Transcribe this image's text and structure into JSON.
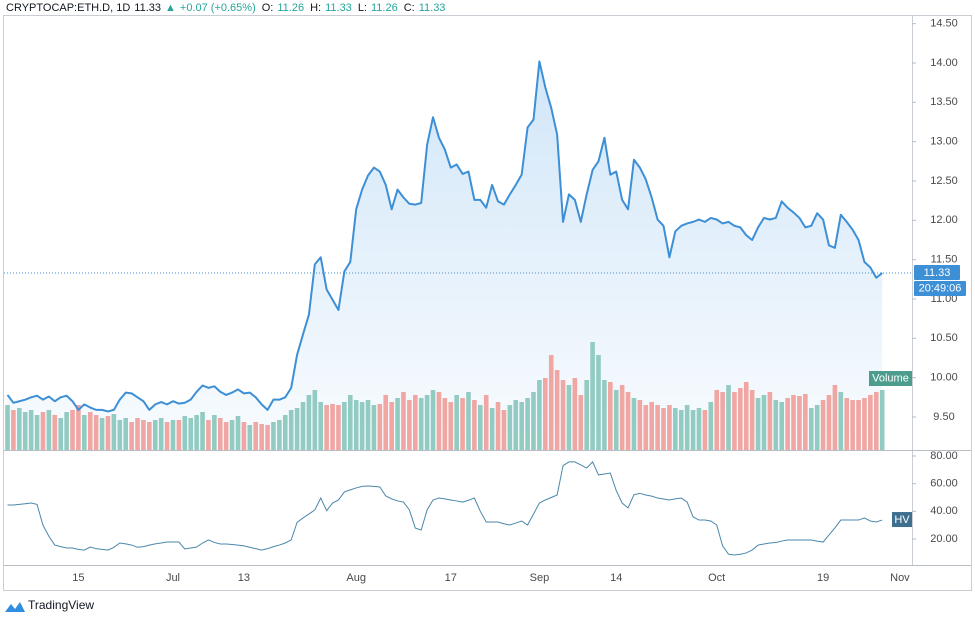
{
  "branding": "TradingView",
  "chart_data": [
    {
      "type": "area",
      "title": "CRYPTOCAP:ETH.D, 1D",
      "quote": {
        "last": 11.33,
        "change": "+0.07 (+0.65%)",
        "ohlc": [
          {
            "label": "O:",
            "value": 11.26
          },
          {
            "label": "H:",
            "value": 11.33
          },
          {
            "label": "L:",
            "value": 11.26
          },
          {
            "label": "C:",
            "value": 11.33
          }
        ]
      },
      "countdown": "20:49:06",
      "color": "#3d8fd6",
      "categories": [
        null,
        null,
        null,
        null,
        null,
        null,
        null,
        null,
        null,
        null,
        null,
        null,
        "15",
        null,
        null,
        null,
        null,
        null,
        null,
        null,
        null,
        null,
        null,
        null,
        null,
        null,
        null,
        null,
        "Jul",
        null,
        null,
        null,
        null,
        null,
        null,
        null,
        null,
        null,
        null,
        null,
        "13",
        null,
        null,
        null,
        null,
        null,
        null,
        null,
        null,
        null,
        null,
        null,
        null,
        null,
        null,
        null,
        null,
        null,
        null,
        "Aug",
        null,
        null,
        null,
        null,
        null,
        null,
        null,
        null,
        null,
        null,
        null,
        null,
        null,
        null,
        null,
        "17",
        null,
        null,
        null,
        null,
        null,
        null,
        null,
        null,
        null,
        null,
        null,
        null,
        null,
        null,
        "Sep",
        null,
        null,
        null,
        null,
        null,
        null,
        null,
        null,
        null,
        null,
        null,
        null,
        "14",
        null,
        null,
        null,
        null,
        null,
        null,
        null,
        null,
        null,
        null,
        null,
        null,
        null,
        null,
        null,
        null,
        "Oct",
        null,
        null,
        null,
        null,
        null,
        null,
        null,
        null,
        null,
        null,
        null,
        null,
        null,
        null,
        null,
        null,
        null,
        "19",
        null,
        null,
        null,
        null,
        null,
        null,
        null,
        null,
        null,
        null,
        null,
        null,
        "Nov"
      ],
      "values": [
        9.78,
        9.68,
        9.7,
        9.72,
        9.75,
        9.77,
        9.72,
        9.76,
        9.7,
        9.75,
        9.77,
        9.7,
        9.59,
        9.66,
        9.62,
        9.59,
        9.59,
        9.57,
        9.59,
        9.72,
        9.81,
        9.8,
        9.75,
        9.7,
        9.59,
        9.66,
        9.69,
        9.66,
        9.7,
        9.67,
        9.68,
        9.72,
        9.82,
        9.9,
        9.87,
        9.89,
        9.82,
        9.78,
        9.81,
        9.85,
        9.8,
        9.81,
        9.75,
        9.66,
        9.59,
        9.72,
        9.72,
        9.75,
        9.87,
        10.29,
        10.55,
        10.8,
        11.44,
        11.53,
        11.12,
        10.99,
        10.86,
        11.35,
        11.47,
        12.14,
        12.39,
        12.57,
        12.67,
        12.62,
        12.45,
        12.14,
        12.39,
        12.29,
        12.21,
        12.2,
        12.22,
        12.96,
        13.31,
        13.05,
        12.9,
        12.67,
        12.71,
        12.59,
        12.62,
        12.26,
        12.26,
        12.16,
        12.45,
        12.24,
        12.2,
        12.33,
        12.45,
        12.58,
        13.18,
        13.28,
        14.02,
        13.69,
        13.43,
        13.09,
        11.98,
        12.33,
        12.26,
        11.98,
        12.33,
        12.64,
        12.75,
        13.05,
        12.58,
        12.62,
        12.26,
        12.14,
        12.77,
        12.67,
        12.52,
        12.29,
        12.01,
        11.93,
        11.53,
        11.86,
        11.93,
        11.96,
        11.98,
        12.01,
        11.98,
        12.03,
        12.01,
        11.96,
        11.98,
        11.93,
        11.91,
        11.81,
        11.75,
        11.91,
        12.03,
        12.01,
        12.03,
        12.24,
        12.16,
        12.1,
        12.03,
        11.91,
        11.93,
        12.09,
        12.01,
        11.68,
        11.65,
        12.07,
        11.98,
        11.88,
        11.75,
        11.47,
        11.4,
        11.27,
        11.33,
        null,
        null,
        null
      ],
      "ylim": [
        9.08,
        14.61
      ],
      "yticks": [
        {
          "value": 9.5,
          "label": "9.50"
        },
        {
          "value": 10,
          "label": "10.00"
        },
        {
          "value": 10.5,
          "label": "10.50"
        },
        {
          "value": 11,
          "label": "11.00"
        },
        {
          "value": 11.5,
          "label": "11.50"
        },
        {
          "value": 12,
          "label": "12.00"
        },
        {
          "value": 12.5,
          "label": "12.50"
        },
        {
          "value": 13,
          "label": "13.00"
        },
        {
          "value": 13.5,
          "label": "13.50"
        },
        {
          "value": 14,
          "label": "14.00"
        },
        {
          "value": 14.5,
          "label": "14.50"
        }
      ],
      "grid": false
    },
    {
      "type": "bar",
      "name": "Volume",
      "up_color": "#92cbc1",
      "down_color": "#f0a6a2",
      "values": [
        45,
        40,
        42,
        38,
        40,
        35,
        38,
        40,
        35,
        32,
        38,
        40,
        45,
        35,
        38,
        35,
        32,
        34,
        36,
        30,
        32,
        28,
        32,
        30,
        28,
        30,
        32,
        28,
        30,
        30,
        34,
        32,
        35,
        38,
        30,
        35,
        32,
        28,
        30,
        34,
        28,
        25,
        28,
        26,
        25,
        28,
        30,
        35,
        40,
        42,
        48,
        55,
        60,
        48,
        45,
        46,
        45,
        48,
        55,
        50,
        48,
        50,
        45,
        46,
        55,
        48,
        52,
        58,
        50,
        55,
        52,
        55,
        60,
        58,
        52,
        48,
        55,
        52,
        58,
        50,
        45,
        55,
        42,
        48,
        40,
        45,
        50,
        48,
        52,
        58,
        70,
        72,
        95,
        80,
        70,
        65,
        72,
        55,
        70,
        108,
        95,
        70,
        68,
        60,
        65,
        58,
        52,
        50,
        45,
        48,
        45,
        42,
        45,
        42,
        40,
        45,
        40,
        42,
        40,
        48,
        60,
        58,
        65,
        58,
        62,
        68,
        60,
        52,
        55,
        58,
        50,
        48,
        52,
        55,
        54,
        56,
        42,
        45,
        50,
        55,
        65,
        58,
        52,
        50,
        50,
        52,
        55,
        58,
        60,
        null,
        null,
        null
      ],
      "ylim": [
        0,
        435
      ]
    },
    {
      "type": "line",
      "name": "HV",
      "color": "#4b87ab",
      "values": [
        44.6,
        44.6,
        45.0,
        45.5,
        46.0,
        45.0,
        30.0,
        22.0,
        15.6,
        14.5,
        13.5,
        13.5,
        12.5,
        12.0,
        14.2,
        13.0,
        12.5,
        12.0,
        14.0,
        17.1,
        16.5,
        15.6,
        14.0,
        14.5,
        15.6,
        16.5,
        17.1,
        17.8,
        17.8,
        17.8,
        12.8,
        13.5,
        14.2,
        17.1,
        19.3,
        17.5,
        16.4,
        16.4,
        16.0,
        15.6,
        15.0,
        14.0,
        13.0,
        12.0,
        13.0,
        14.5,
        15.6,
        17.1,
        19.3,
        32.0,
        35.2,
        38.0,
        41.0,
        49.6,
        40.5,
        46.0,
        48.2,
        54.0,
        55.5,
        56.9,
        58.0,
        58.3,
        58.0,
        57.6,
        51.1,
        49.0,
        47.5,
        46.7,
        41.0,
        27.9,
        26.5,
        41.0,
        48.2,
        49.6,
        49.0,
        48.2,
        47.5,
        46.7,
        48.0,
        49.6,
        40.0,
        32.3,
        32.3,
        32.3,
        31.0,
        30.1,
        31.5,
        33.0,
        30.1,
        38.0,
        46.0,
        48.2,
        50.0,
        51.8,
        73.0,
        75.7,
        75.7,
        73.5,
        71.3,
        75.7,
        66.3,
        67.0,
        67.7,
        55.0,
        46.0,
        42.4,
        52.0,
        53.0,
        51.8,
        51.0,
        49.6,
        48.9,
        48.2,
        49.0,
        49.6,
        46.7,
        36.0,
        33.7,
        33.7,
        33.0,
        30.1,
        15.0,
        9.0,
        8.4,
        9.0,
        9.9,
        12.0,
        15.6,
        16.4,
        17.1,
        17.5,
        18.5,
        19.3,
        19.3,
        19.3,
        19.3,
        19.3,
        18.5,
        17.8,
        22.9,
        28.0,
        33.7,
        33.7,
        33.7,
        33.7,
        35.2,
        33.0,
        32.3,
        33.7,
        null,
        null,
        null
      ],
      "ylim": [
        1.2,
        83.6
      ],
      "yticks": [
        {
          "value": 20,
          "label": "20.00"
        },
        {
          "value": 40,
          "label": "40.00"
        },
        {
          "value": 60,
          "label": "60.00"
        },
        {
          "value": 80,
          "label": "80.00"
        }
      ],
      "grid": false
    }
  ]
}
